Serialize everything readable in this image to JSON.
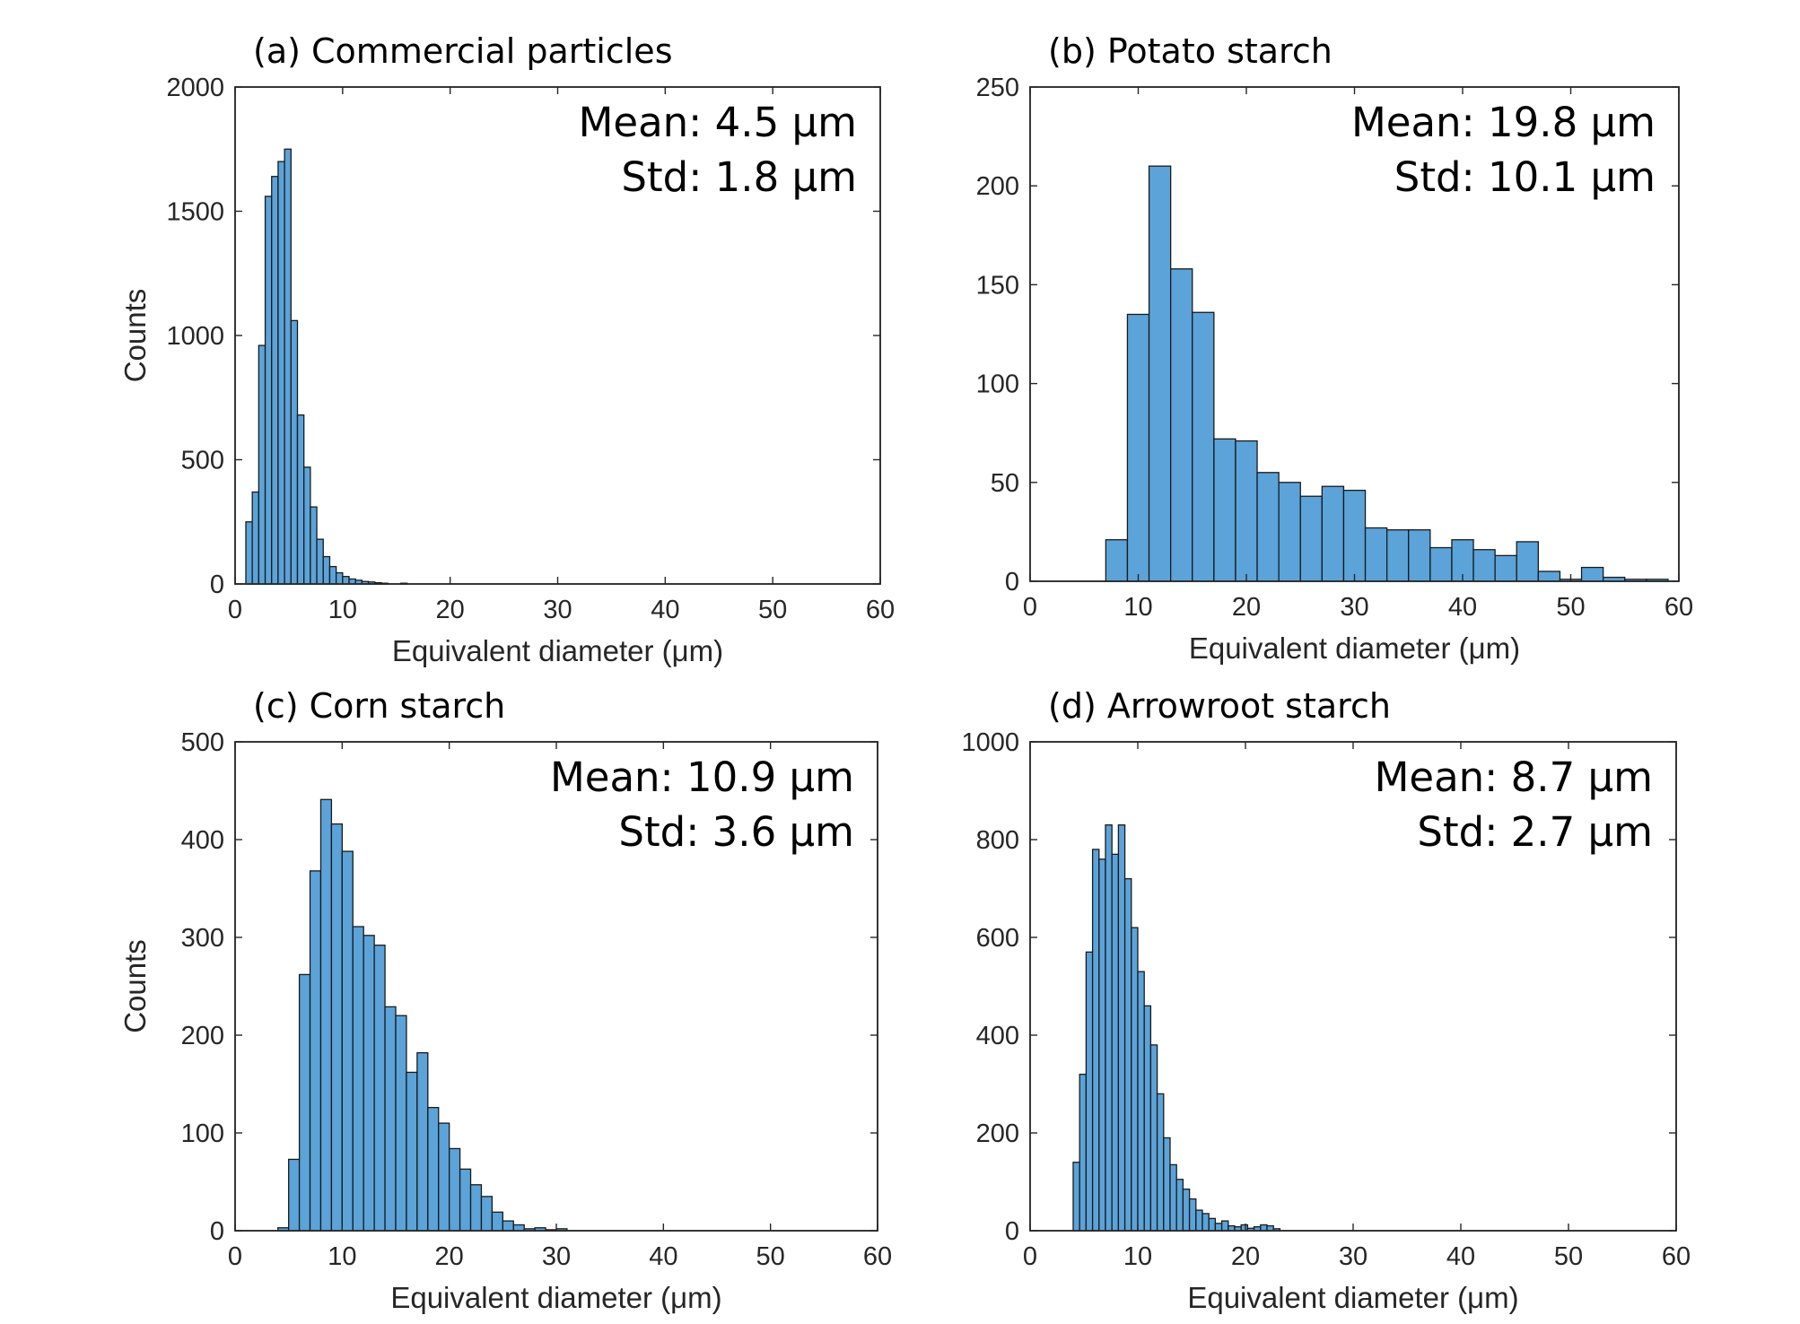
{
  "chart_data": [
    {
      "type": "bar",
      "panel": "a",
      "title": "(a) Commercial particles",
      "annotation": {
        "mean": "Mean: 4.5 μm",
        "std": "Std: 1.8 μm"
      },
      "xlabel": "Equivalent diameter (μm)",
      "ylabel": "Counts",
      "xlim": [
        0,
        60
      ],
      "ylim": [
        0,
        2000
      ],
      "xticks": [
        "0",
        "10",
        "20",
        "30",
        "40",
        "50",
        "60"
      ],
      "yticks": [
        "0",
        "500",
        "1000",
        "1500",
        "2000"
      ],
      "bin_width": 0.6,
      "bin_start": 1.0,
      "values": [
        250,
        370,
        960,
        1560,
        1640,
        1700,
        1750,
        1060,
        680,
        470,
        310,
        180,
        110,
        70,
        45,
        30,
        20,
        15,
        10,
        8,
        5,
        3,
        0,
        0,
        3
      ]
    },
    {
      "type": "bar",
      "panel": "b",
      "title": "(b) Potato starch",
      "annotation": {
        "mean": "Mean: 19.8 μm",
        "std": "Std: 10.1 μm"
      },
      "xlabel": "Equivalent diameter (μm)",
      "ylabel": "",
      "xlim": [
        0,
        60
      ],
      "ylim": [
        0,
        250
      ],
      "xticks": [
        "0",
        "10",
        "20",
        "30",
        "40",
        "50",
        "60"
      ],
      "yticks": [
        "0",
        "50",
        "100",
        "150",
        "200",
        "250"
      ],
      "bin_width": 2.0,
      "bin_start": 7.0,
      "values": [
        21,
        135,
        210,
        158,
        136,
        72,
        71,
        55,
        50,
        43,
        48,
        46,
        27,
        26,
        26,
        17,
        21,
        16,
        13,
        20,
        5,
        1,
        7,
        2,
        1,
        1
      ]
    },
    {
      "type": "bar",
      "panel": "c",
      "title": "(c) Corn starch",
      "annotation": {
        "mean": "Mean: 10.9 μm",
        "std": "Std: 3.6 μm"
      },
      "xlabel": "Equivalent diameter (μm)",
      "ylabel": "Counts",
      "xlim": [
        0,
        60
      ],
      "ylim": [
        0,
        500
      ],
      "xticks": [
        "0",
        "10",
        "20",
        "30",
        "40",
        "50",
        "60"
      ],
      "yticks": [
        "0",
        "100",
        "200",
        "300",
        "400",
        "500"
      ],
      "bin_width": 1.0,
      "bin_start": 4.0,
      "values": [
        3,
        73,
        262,
        368,
        441,
        416,
        388,
        311,
        302,
        292,
        229,
        220,
        162,
        182,
        126,
        110,
        84,
        63,
        47,
        35,
        19,
        10,
        6,
        2,
        3,
        1,
        2
      ]
    },
    {
      "type": "bar",
      "panel": "d",
      "title": "(d) Arrowroot starch",
      "annotation": {
        "mean": "Mean: 8.7 μm",
        "std": "Std: 2.7 μm"
      },
      "xlabel": "Equivalent diameter (μm)",
      "ylabel": "",
      "xlim": [
        0,
        60
      ],
      "ylim": [
        0,
        1000
      ],
      "xticks": [
        "0",
        "10",
        "20",
        "30",
        "40",
        "50",
        "60"
      ],
      "yticks": [
        "0",
        "200",
        "400",
        "600",
        "800",
        "1000"
      ],
      "bin_width": 0.6,
      "bin_start": 4.0,
      "values": [
        140,
        320,
        570,
        780,
        760,
        830,
        770,
        830,
        720,
        620,
        530,
        460,
        380,
        280,
        190,
        135,
        105,
        85,
        65,
        42,
        35,
        25,
        15,
        20,
        10,
        8,
        12,
        5,
        8,
        12,
        10,
        4
      ]
    }
  ]
}
